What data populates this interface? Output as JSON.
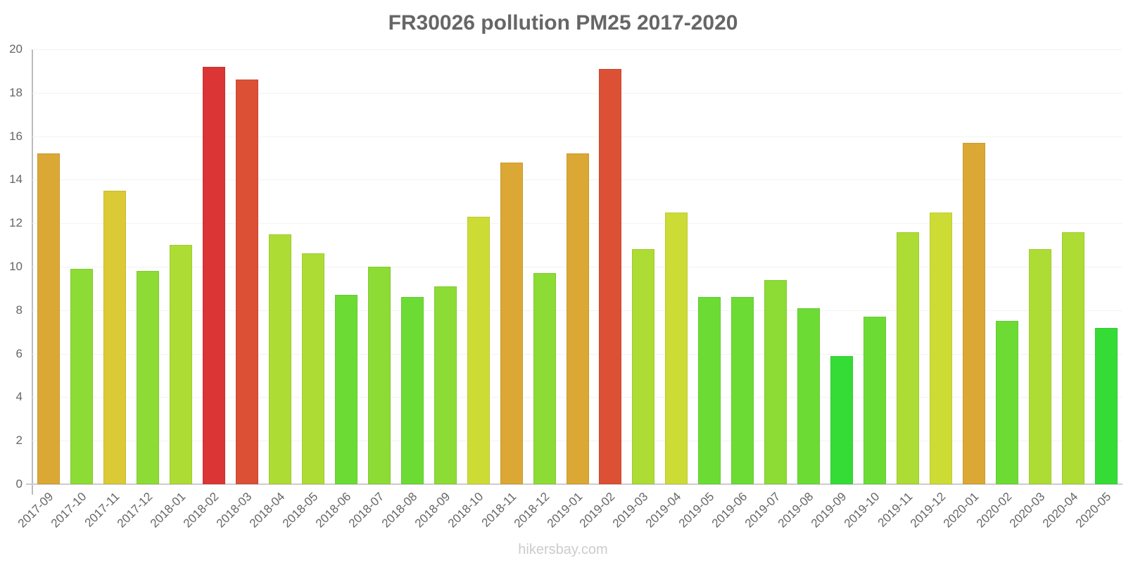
{
  "chart_data": {
    "type": "bar",
    "title": "FR30026 pollution PM25 2017-2020",
    "xlabel": "",
    "ylabel": "",
    "ylim": [
      0,
      20
    ],
    "yticks": [
      0,
      2,
      4,
      6,
      8,
      10,
      12,
      14,
      16,
      18,
      20
    ],
    "grid": true,
    "legend": null,
    "categories": [
      "2017-09",
      "2017-10",
      "2017-11",
      "2017-12",
      "2018-01",
      "2018-02",
      "2018-03",
      "2018-04",
      "2018-05",
      "2018-06",
      "2018-07",
      "2018-08",
      "2018-09",
      "2018-10",
      "2018-11",
      "2018-12",
      "2019-01",
      "2019-02",
      "2019-03",
      "2019-04",
      "2019-05",
      "2019-06",
      "2019-07",
      "2019-08",
      "2019-09",
      "2019-10",
      "2019-11",
      "2019-12",
      "2020-01",
      "2020-02",
      "2020-03",
      "2020-04",
      "2020-05"
    ],
    "values": [
      15.2,
      9.9,
      13.5,
      9.8,
      11.0,
      19.2,
      18.6,
      11.5,
      10.6,
      8.7,
      10.0,
      8.6,
      9.1,
      12.3,
      14.8,
      9.7,
      15.2,
      19.1,
      10.8,
      12.5,
      8.6,
      8.6,
      9.4,
      8.1,
      5.9,
      7.7,
      11.6,
      12.5,
      15.7,
      7.5,
      10.8,
      11.6,
      7.2
    ],
    "colors": [
      "#DBA835",
      "#8CDC35",
      "#DBCA35",
      "#8CDC35",
      "#ADDC35",
      "#DB3535",
      "#DC5035",
      "#ADDC35",
      "#ADDC35",
      "#6CDC35",
      "#8CDC35",
      "#6CDC35",
      "#8CDC35",
      "#CDDC35",
      "#DBA835",
      "#8CDC35",
      "#DBA835",
      "#DC5035",
      "#ADDC35",
      "#CDDC35",
      "#6CDC35",
      "#6CDC35",
      "#8CDC35",
      "#6CDC35",
      "#35DC35",
      "#6CDC35",
      "#ADDC35",
      "#CDDC35",
      "#DBA835",
      "#6CDC35",
      "#ADDC35",
      "#ADDC35",
      "#35DC35"
    ]
  },
  "footer": "hikersbay.com"
}
